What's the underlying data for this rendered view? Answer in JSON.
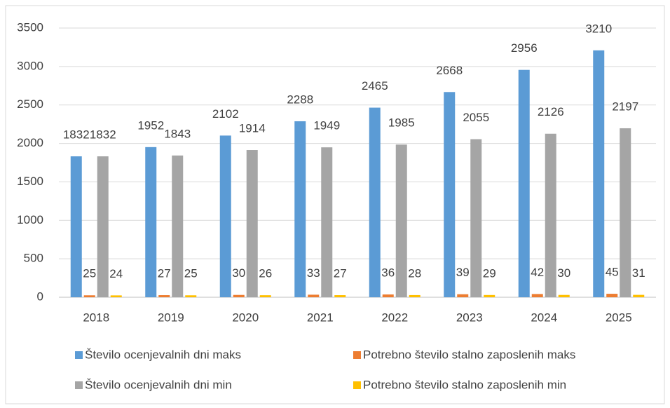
{
  "chart_data": {
    "type": "bar",
    "categories": [
      "2018",
      "2019",
      "2020",
      "2021",
      "2022",
      "2023",
      "2024",
      "2025"
    ],
    "series": [
      {
        "name": "Število ocenjevalnih dni maks",
        "color": "#5b9bd5",
        "values": [
          1832,
          1952,
          2102,
          2288,
          2465,
          2668,
          2956,
          3210
        ]
      },
      {
        "name": "Potrebno število stalno zaposlenih maks",
        "color": "#ed7d31",
        "values": [
          25,
          27,
          30,
          33,
          36,
          39,
          42,
          45
        ]
      },
      {
        "name": "Število ocenjevalnih dni min",
        "color": "#a5a5a5",
        "values": [
          1832,
          1843,
          1914,
          1949,
          1985,
          2055,
          2126,
          2197
        ]
      },
      {
        "name": "Potrebno število stalno zaposlenih min",
        "color": "#ffc000",
        "values": [
          24,
          25,
          26,
          27,
          28,
          29,
          30,
          31
        ]
      }
    ],
    "ylim": [
      0,
      3500
    ],
    "yticks": [
      0,
      500,
      1000,
      1500,
      2000,
      2500,
      3000,
      3500
    ],
    "grid": true,
    "legend": "bottom"
  }
}
